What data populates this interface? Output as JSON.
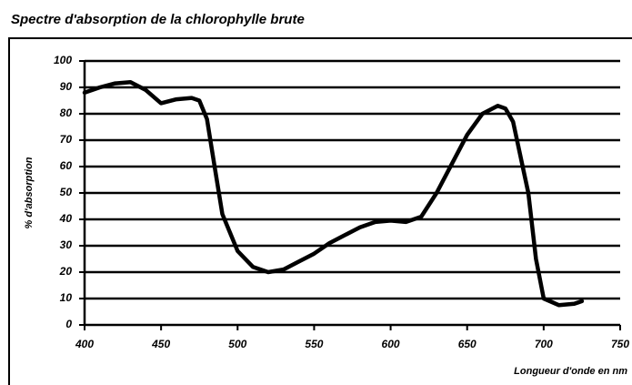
{
  "chart_data": {
    "type": "line",
    "title": "Spectre d'absorption de la chlorophylle brute",
    "y_label": "% d'absorption",
    "x_label": "Longueur d'onde en nm",
    "x": [
      400,
      410,
      420,
      430,
      440,
      450,
      460,
      470,
      475,
      480,
      485,
      490,
      500,
      510,
      520,
      530,
      540,
      550,
      560,
      570,
      580,
      590,
      600,
      610,
      620,
      630,
      640,
      650,
      660,
      670,
      675,
      680,
      690,
      695,
      700,
      710,
      720,
      725
    ],
    "series": [
      {
        "name": "% d'absorption",
        "color": "#000000",
        "values": [
          88,
          90,
          91.5,
          92,
          89,
          84,
          85.5,
          86,
          85,
          78,
          60,
          42,
          28,
          22,
          20,
          21,
          24,
          27,
          31,
          34,
          37,
          39,
          39.5,
          39,
          41,
          50,
          61,
          72,
          80,
          83,
          82,
          77,
          50,
          25,
          10,
          7.5,
          8,
          9
        ]
      }
    ],
    "xlim": [
      400,
      750
    ],
    "xticks": [
      400,
      450,
      500,
      550,
      600,
      650,
      700,
      750
    ],
    "ylim": [
      0,
      100
    ],
    "yticks": [
      0,
      10,
      20,
      30,
      40,
      50,
      60,
      70,
      80,
      90,
      100
    ],
    "grid": true
  }
}
